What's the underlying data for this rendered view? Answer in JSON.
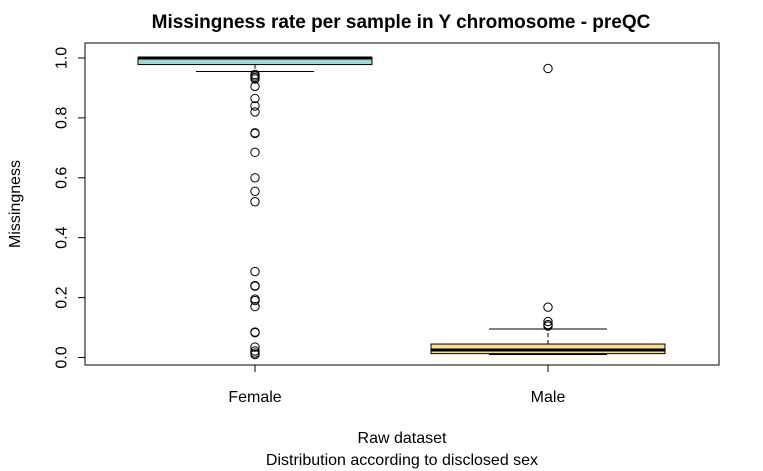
{
  "chart_data": {
    "type": "boxplot",
    "title": "Missingness rate per sample in Y chromosome - preQC",
    "ylabel": "Missingness",
    "xlabel_lines": [
      "Raw dataset",
      "Distribution according to disclosed sex"
    ],
    "ylim": [
      -0.025,
      1.05
    ],
    "yticks": [
      0.0,
      0.2,
      0.4,
      0.6,
      0.8,
      1.0
    ],
    "ytick_labels": [
      "0.0",
      "0.2",
      "0.4",
      "0.6",
      "0.8",
      "1.0"
    ],
    "grid": false,
    "categories": [
      "Female",
      "Male"
    ],
    "boxes": [
      {
        "name": "Female",
        "color": "#9ed8d6",
        "q1": 0.978,
        "median": 1.0,
        "q3": 1.002,
        "whisker_low": 0.955,
        "whisker_high": 1.002,
        "outliers": [
          0.945,
          0.94,
          0.935,
          0.93,
          0.905,
          0.865,
          0.84,
          0.82,
          0.75,
          0.748,
          0.685,
          0.6,
          0.555,
          0.52,
          0.287,
          0.24,
          0.238,
          0.195,
          0.19,
          0.17,
          0.085,
          0.083,
          0.035,
          0.022,
          0.015,
          0.01
        ]
      },
      {
        "name": "Male",
        "color": "#f8e08e",
        "q1": 0.013,
        "median": 0.025,
        "q3": 0.045,
        "whisker_low": 0.01,
        "whisker_high": 0.095,
        "outliers": [
          0.965,
          0.168,
          0.12,
          0.11,
          0.105
        ]
      }
    ]
  }
}
